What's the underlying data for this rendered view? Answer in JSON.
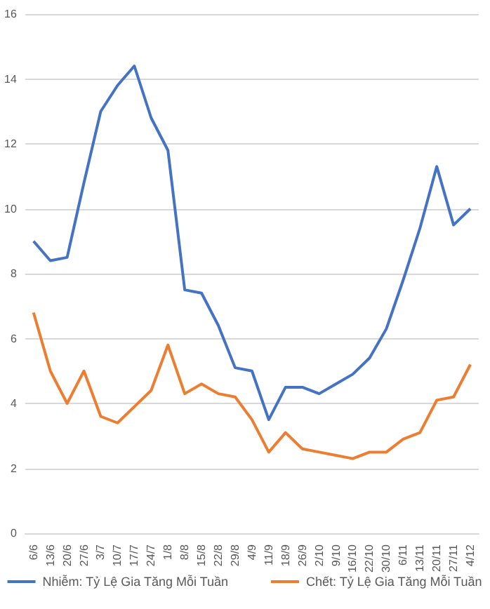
{
  "chart_data": {
    "type": "line",
    "categories": [
      "6/6",
      "13/6",
      "20/6",
      "27/6",
      "3/7",
      "10/7",
      "17/7",
      "24/7",
      "1/8",
      "8/8",
      "15/8",
      "22/8",
      "29/8",
      "4/9",
      "11/9",
      "18/9",
      "26/9",
      "2/10",
      "9/10",
      "16/10",
      "22/10",
      "30/10",
      "6/11",
      "13/11",
      "20/11",
      "27/11",
      "4/12"
    ],
    "series": [
      {
        "name": "Nhiễm: Tỷ Lệ Gia Tăng Mỗi Tuần",
        "color": "#4472c4",
        "values": [
          9.0,
          8.4,
          8.5,
          10.8,
          13.0,
          13.8,
          14.4,
          12.8,
          11.8,
          7.5,
          7.4,
          6.4,
          5.1,
          5.0,
          3.5,
          4.5,
          4.5,
          4.3,
          4.6,
          4.9,
          5.4,
          6.3,
          7.8,
          9.4,
          11.3,
          9.5,
          10.0
        ]
      },
      {
        "name": "Chết: Tỷ Lệ Gia Tăng Mỗi Tuần",
        "color": "#ed7d31",
        "values": [
          6.8,
          5.0,
          4.0,
          5.0,
          3.6,
          3.4,
          3.9,
          4.4,
          5.8,
          4.3,
          4.6,
          4.3,
          4.2,
          3.5,
          2.5,
          3.1,
          2.6,
          2.5,
          2.4,
          2.3,
          2.5,
          2.5,
          2.9,
          3.1,
          4.1,
          4.2,
          5.2
        ]
      }
    ],
    "ylim": [
      0,
      16
    ],
    "yticks": [
      0,
      2,
      4,
      6,
      8,
      10,
      12,
      14,
      16
    ],
    "grid": "y",
    "legend": "bottom",
    "marker": "none",
    "line_style": "solid"
  }
}
